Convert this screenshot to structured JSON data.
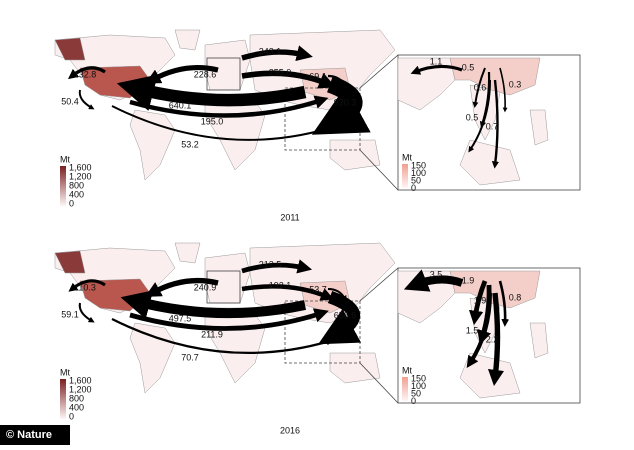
{
  "panels": [
    {
      "year": "2011",
      "flows": {
        "values": [
          132.8,
          228.6,
          243.1,
          255.0,
          69.1,
          920.3,
          640.1,
          50.4,
          195.0,
          53.2
        ],
        "value_labels": [
          "132.8",
          "228.6",
          "243.1",
          "255.0",
          "69.1",
          "920.3",
          "640.1",
          "50.4",
          "195.0",
          "53.2"
        ]
      },
      "inset_flows": {
        "values": [
          1.1,
          0.5,
          0.6,
          0.3,
          0.5,
          0.7
        ]
      },
      "legend": {
        "unit": "Mt",
        "labels": [
          "1,600",
          "1,200",
          "800",
          "400",
          "0"
        ]
      },
      "inset_legend": {
        "unit": "Mt",
        "labels": [
          "150",
          "100",
          "50",
          "0"
        ]
      }
    },
    {
      "year": "2016",
      "flows": {
        "values": [
          110.3,
          240.9,
          212.5,
          192.1,
          53.7,
          656.8,
          497.5,
          59.1,
          211.9,
          70.7
        ],
        "value_labels": [
          "110.3",
          "240.9",
          "212.5",
          "192.1",
          "53.7",
          "656.8",
          "497.5",
          "59.1",
          "211.9",
          "70.7"
        ]
      },
      "inset_flows": {
        "values": [
          3.5,
          1.9,
          1.9,
          0.8,
          1.5,
          2.2
        ]
      },
      "legend": {
        "unit": "Mt",
        "labels": [
          "1,600",
          "1,200",
          "800",
          "400",
          "0"
        ]
      },
      "inset_legend": {
        "unit": "Mt",
        "labels": [
          "150",
          "100",
          "50",
          "0"
        ]
      }
    }
  ],
  "credit": "© Nature"
}
